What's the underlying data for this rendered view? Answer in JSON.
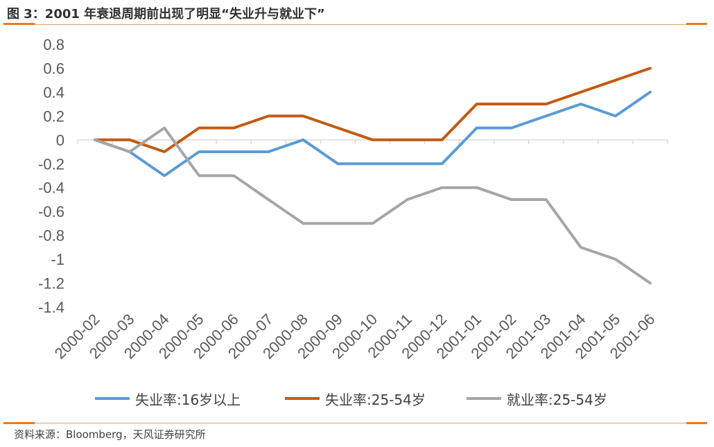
{
  "header": {
    "title": "图 3：2001 年衰退周期前出现了明显“失业升与就业下”"
  },
  "footer": {
    "source": "资料来源：Bloomberg，天风证券研究所"
  },
  "colors": {
    "rule": "#e67e22",
    "axis": "#d9d9d9"
  },
  "chart_data": {
    "type": "line",
    "categories": [
      "2000-02",
      "2000-03",
      "2000-04",
      "2000-05",
      "2000-06",
      "2000-07",
      "2000-08",
      "2000-09",
      "2000-10",
      "2000-11",
      "2000-12",
      "2001-01",
      "2001-02",
      "2001-03",
      "2001-04",
      "2001-05",
      "2001-06"
    ],
    "ylim": [
      -1.4,
      0.8
    ],
    "yticks": [
      0.8,
      0.6,
      0.4,
      0.2,
      0,
      -0.2,
      -0.4,
      -0.6,
      -0.8,
      -1,
      -1.2,
      -1.4
    ],
    "ytick_labels": [
      "0.8",
      "0.6",
      "0.4",
      "0.2",
      "0",
      "-0.2",
      "-0.4",
      "-0.6",
      "-0.8",
      "-1",
      "-1.2",
      "-1.4"
    ],
    "grid": false,
    "legend_position": "bottom",
    "series": [
      {
        "name": "失业率:16岁以上",
        "color": "#5b9bd5",
        "values": [
          0,
          -0.1,
          -0.3,
          -0.1,
          -0.1,
          -0.1,
          0,
          -0.2,
          -0.2,
          -0.2,
          -0.2,
          0.1,
          0.1,
          0.2,
          0.3,
          0.2,
          0.4
        ]
      },
      {
        "name": "失业率:25-54岁",
        "color": "#c55a11",
        "values": [
          0,
          0,
          -0.1,
          0.1,
          0.1,
          0.2,
          0.2,
          0.1,
          0,
          0,
          0,
          0.3,
          0.3,
          0.3,
          0.4,
          0.5,
          0.6
        ]
      },
      {
        "name": "就业率:25-54岁",
        "color": "#a5a5a5",
        "values": [
          0,
          -0.1,
          0.1,
          -0.3,
          -0.3,
          -0.5,
          -0.7,
          -0.7,
          -0.7,
          -0.5,
          -0.4,
          -0.4,
          -0.5,
          -0.5,
          -0.9,
          -1,
          -1.2
        ]
      }
    ]
  }
}
